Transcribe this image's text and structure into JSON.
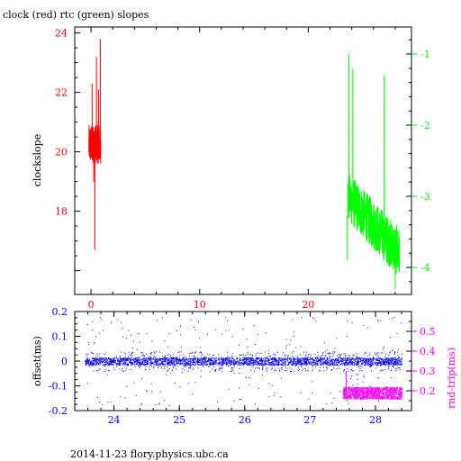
{
  "chart_data": [
    {
      "type": "line",
      "title": "clock (red) rtc (green) slopes",
      "ylabel": "clockslope",
      "xlim": [
        -1.5,
        29.5
      ],
      "xticks": [
        0,
        10,
        20
      ],
      "ylim_left": [
        15.2,
        24.2
      ],
      "yticks_left": [
        18,
        20,
        22,
        24
      ],
      "ylim_right": [
        -4.38,
        -0.62
      ],
      "yticks_right": [
        -4,
        -3,
        -2,
        -1
      ],
      "grid": false,
      "series": [
        {
          "name": "clock",
          "color": "#ff0000",
          "axis": "left",
          "x_range": [
            -0.2,
            0.9
          ],
          "center": 20.2,
          "band": [
            19.6,
            20.9
          ],
          "extremes": [
            [
              0.1,
              22.3
            ],
            [
              0.35,
              16.7
            ],
            [
              0.5,
              23.2
            ],
            [
              0.7,
              22.1
            ],
            [
              0.85,
              23.8
            ],
            [
              0.25,
              19.0
            ]
          ]
        },
        {
          "name": "rtc",
          "color": "#00ff00",
          "axis": "right",
          "x_range": [
            23.6,
            28.4
          ],
          "start": -3.0,
          "end": -3.8,
          "noise": 0.7,
          "extremes": [
            [
              23.75,
              -1.0
            ],
            [
              24.1,
              -1.2
            ],
            [
              23.6,
              -3.9
            ],
            [
              27.0,
              -1.3
            ],
            [
              28.0,
              -4.3
            ],
            [
              28.3,
              -4.0
            ]
          ]
        }
      ]
    },
    {
      "type": "scatter",
      "ylabel": "offset(ms)",
      "y2label": "rnd-trip(ms)",
      "xlim": [
        23.4,
        28.55
      ],
      "xticks": [
        24,
        25,
        26,
        27,
        28
      ],
      "ylim_left": [
        -0.2,
        0.2
      ],
      "yticks_left": [
        -0.2,
        -0.1,
        0,
        0.1,
        0.2
      ],
      "ylim_right": [
        0.1,
        0.6
      ],
      "yticks_right": [
        0.2,
        0.3,
        0.4,
        0.5
      ],
      "grid": false,
      "series": [
        {
          "name": "offset",
          "color": "#0000ff",
          "axis": "left",
          "x_range": [
            23.55,
            28.4
          ],
          "center": 0.0,
          "band": [
            -0.015,
            0.015
          ],
          "outlier_range": [
            -0.18,
            0.18
          ]
        },
        {
          "name": "rnd-trip",
          "color": "#ff00ff",
          "axis": "right",
          "x_range": [
            27.5,
            28.4
          ],
          "band": [
            0.16,
            0.22
          ],
          "spike": [
            27.55,
            0.3
          ]
        }
      ]
    }
  ],
  "footer": "2014-11-23 flory.physics.ubc.ca"
}
